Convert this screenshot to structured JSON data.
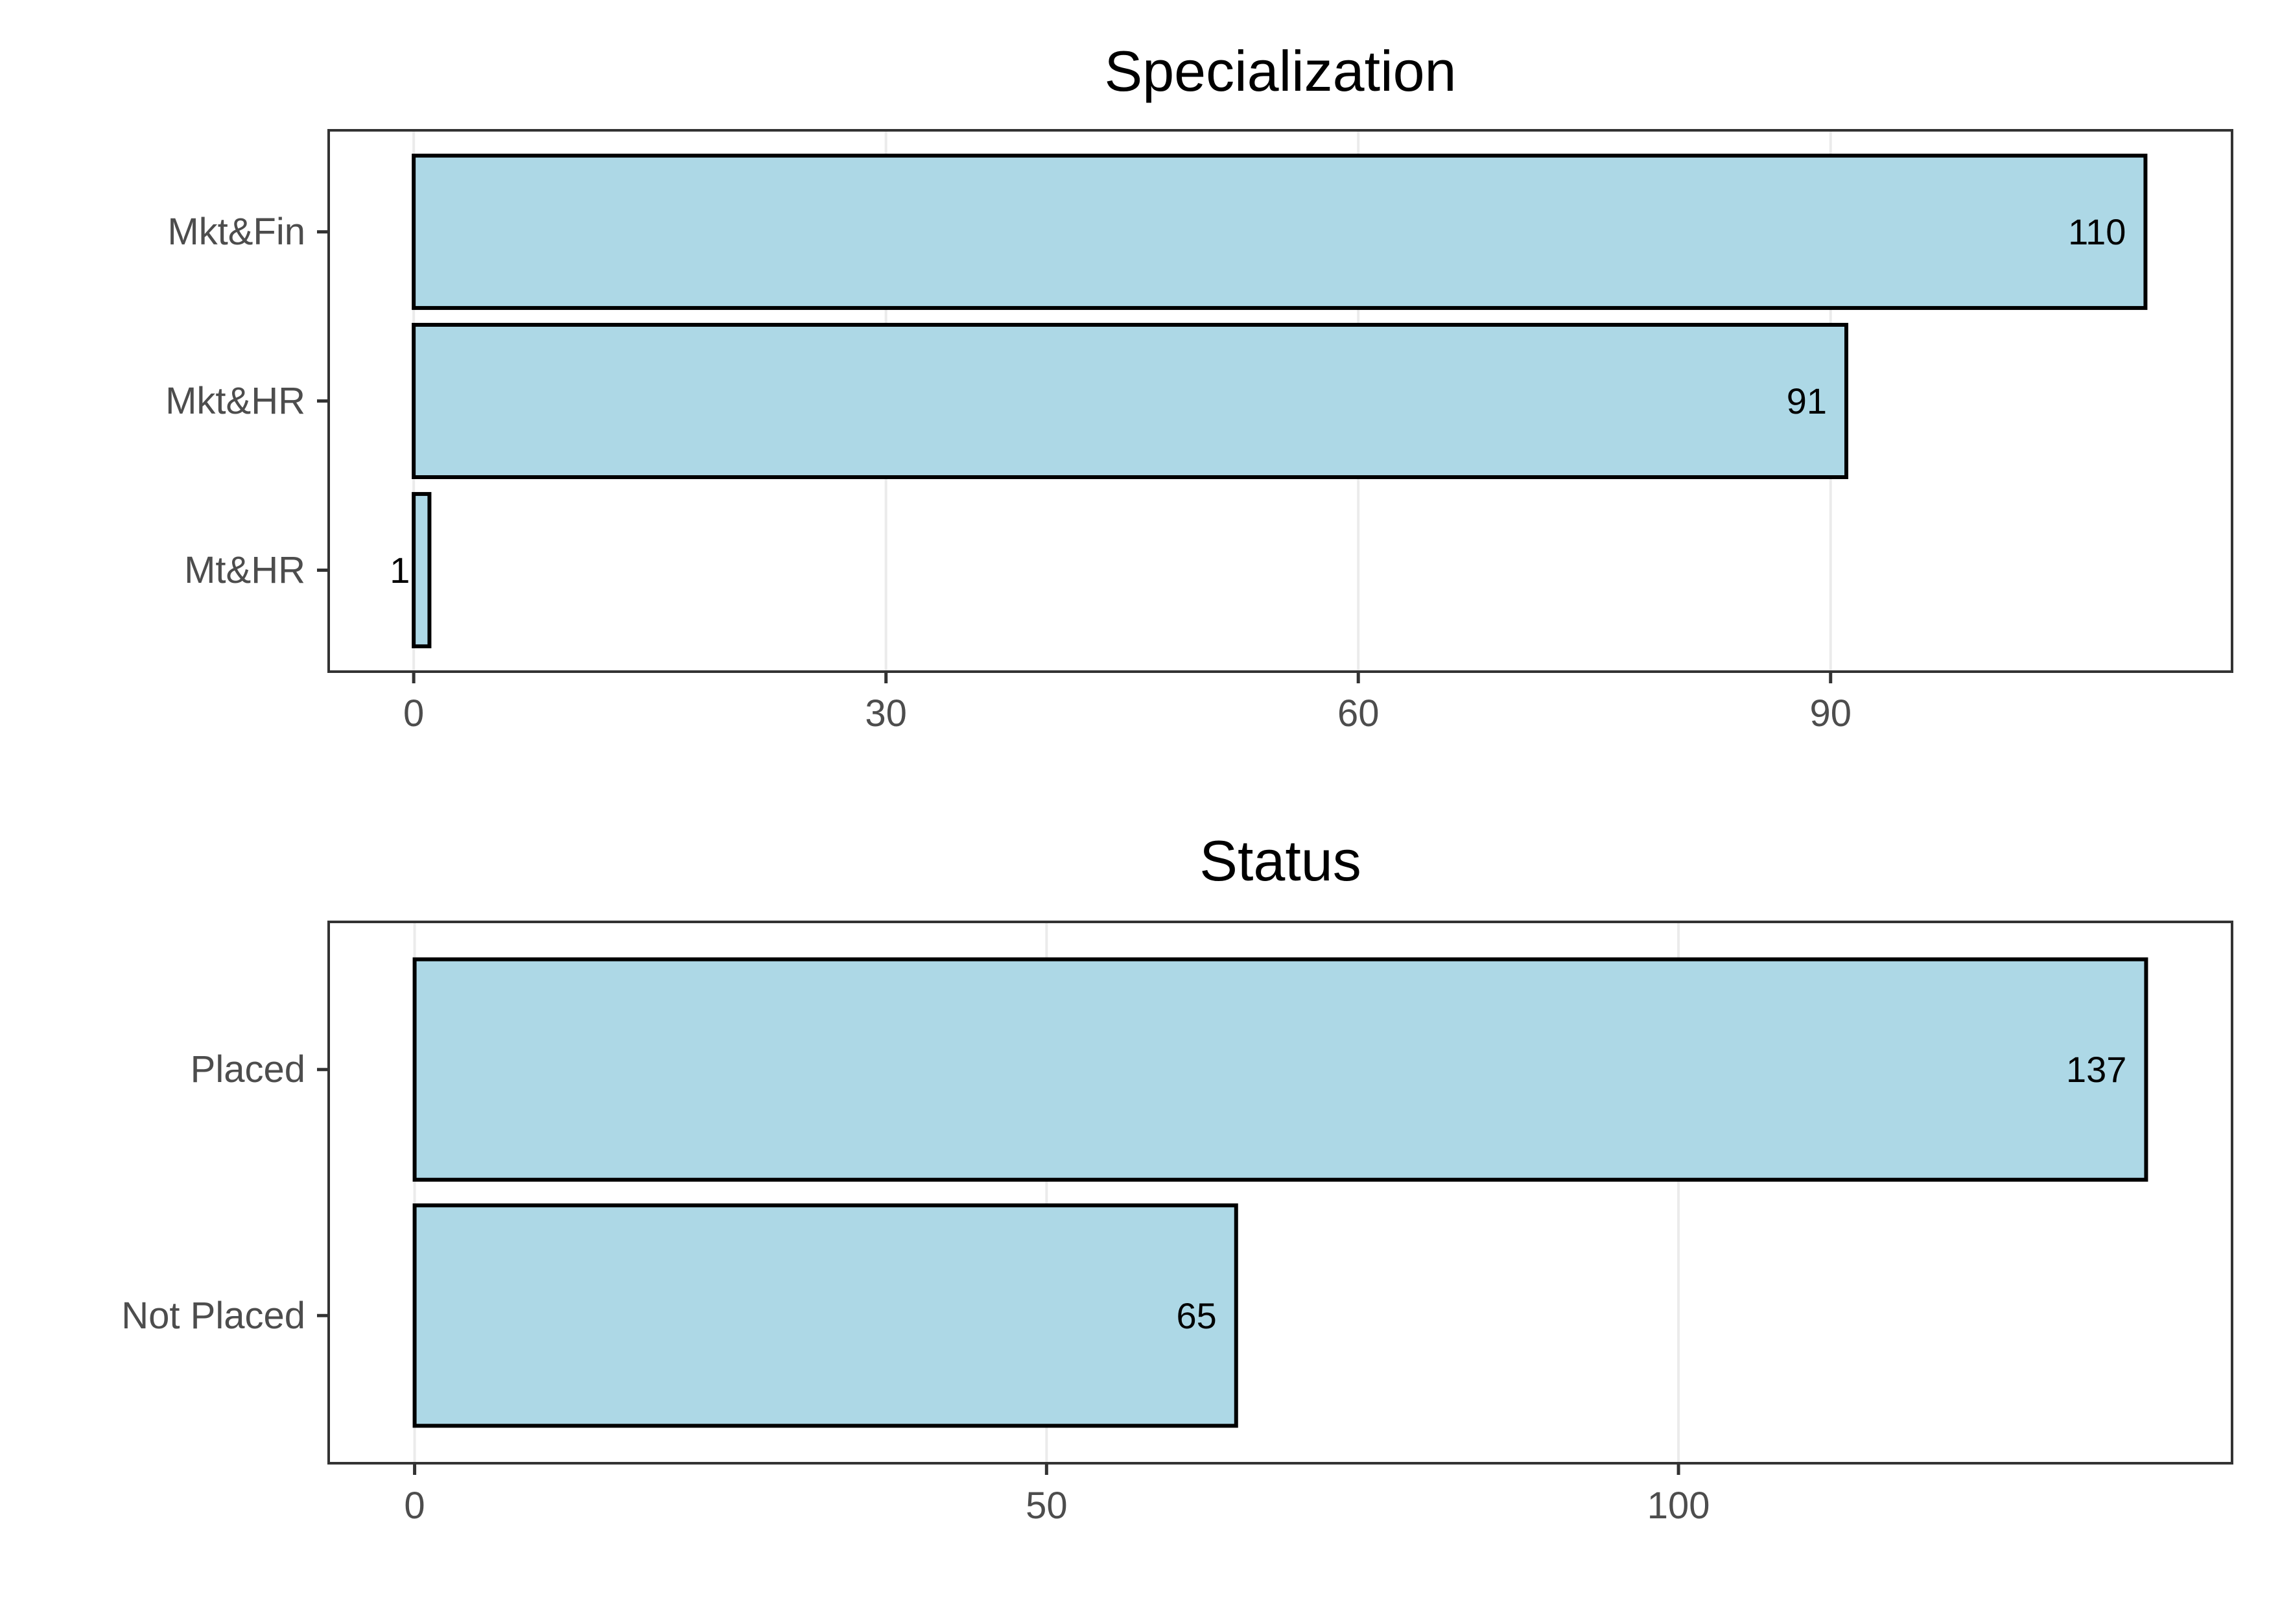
{
  "chart_data": [
    {
      "type": "bar",
      "orientation": "horizontal",
      "title": "Specialization",
      "xlabel": "",
      "ylabel": "",
      "categories": [
        "Mkt&Fin",
        "Mkt&HR",
        "Mt&HR"
      ],
      "values": [
        110,
        91,
        1
      ],
      "data_labels": [
        "110",
        "91",
        "1"
      ],
      "xlim": [
        -5.4,
        115.5
      ],
      "xticks": [
        0,
        30,
        60,
        90
      ],
      "xtick_labels": [
        "0",
        "30",
        "60",
        "90"
      ],
      "grid": true
    },
    {
      "type": "bar",
      "orientation": "horizontal",
      "title": "Status",
      "xlabel": "",
      "ylabel": "",
      "categories": [
        "Placed",
        "Not Placed"
      ],
      "values": [
        137,
        65
      ],
      "data_labels": [
        "137",
        "65"
      ],
      "xlim": [
        -6.8,
        143.8
      ],
      "xticks": [
        0,
        50,
        100
      ],
      "xtick_labels": [
        "0",
        "50",
        "100"
      ],
      "grid": true
    }
  ],
  "colors": {
    "bar_fill": "#add8e6",
    "bar_stroke": "#000000",
    "grid": "#ebebeb",
    "panel_border": "#333333",
    "tick_label": "#4d4d4d",
    "title": "#000000",
    "data_label": "#000000"
  }
}
